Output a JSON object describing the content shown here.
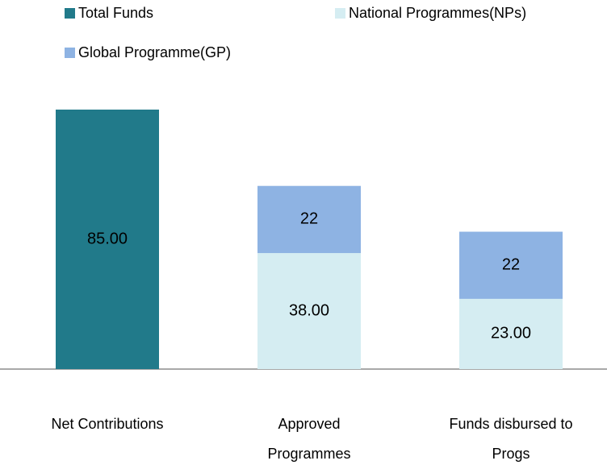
{
  "chart_data": {
    "type": "stacked_bar",
    "categories": [
      "Net Contributions",
      "Approved Programmes",
      "Funds disbursed to Progs"
    ],
    "series": [
      {
        "name": "Total Funds",
        "color": "#217a8a",
        "values": [
          85,
          null,
          null
        ],
        "value_labels": [
          "85.00",
          null,
          null
        ]
      },
      {
        "name": "National Programmes(NPs)",
        "color": "#d5edf2",
        "values": [
          null,
          38,
          23
        ],
        "value_labels": [
          null,
          "38.00",
          "23.00"
        ]
      },
      {
        "name": "Global Programme(GP)",
        "color": "#8eb3e3",
        "values": [
          null,
          22,
          22
        ]
      }
    ]
  }
}
